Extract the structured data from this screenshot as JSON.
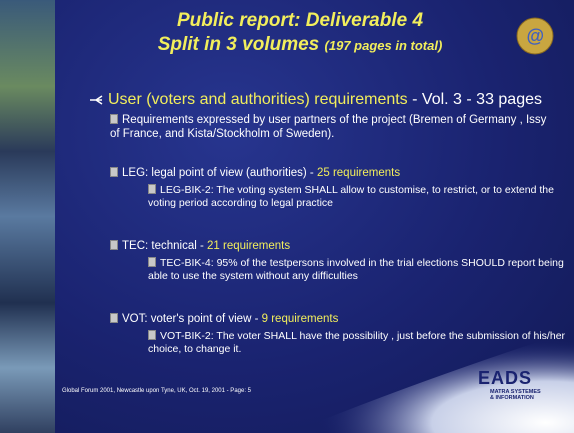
{
  "title": {
    "line1": "Public report: Deliverable 4",
    "line2": "Split in 3 volumes",
    "line2_note": "(197 pages in total)"
  },
  "heading": {
    "highlight": "User (voters and authorities) requirements",
    "rest": "- Vol. 3 - 33 pages"
  },
  "items": [
    {
      "label": "Requirements expressed by user partners of the project (Bremen of Germany , Issy of France, and Kista/Stockholm of Sweden)."
    },
    {
      "label": "LEG: legal point of view (authorities) -",
      "count": "25 requirements",
      "sub": "LEG-BIK-2: The voting system SHALL allow  to customise, to restrict, or to extend the voting period according to legal practice"
    },
    {
      "label": "TEC: technical -",
      "count": "21 requirements",
      "sub": "TEC-BIK-4: 95% of the testpersons involved in the trial elections SHOULD report being able to use the system without any difficulties"
    },
    {
      "label": "VOT: voter's point of view -",
      "count": "9 requirements",
      "sub": "VOT-BIK-2: The voter SHALL have the possibility , just before the submission of his/her choice, to change it."
    }
  ],
  "footer": "Global Forum 2001, Newcastle upon Tyne, UK, Oct. 19, 2001 - Page: 5",
  "logo": {
    "name": "EADS",
    "line1": "MATRA SYSTEMES",
    "line2": "& INFORMATION"
  }
}
